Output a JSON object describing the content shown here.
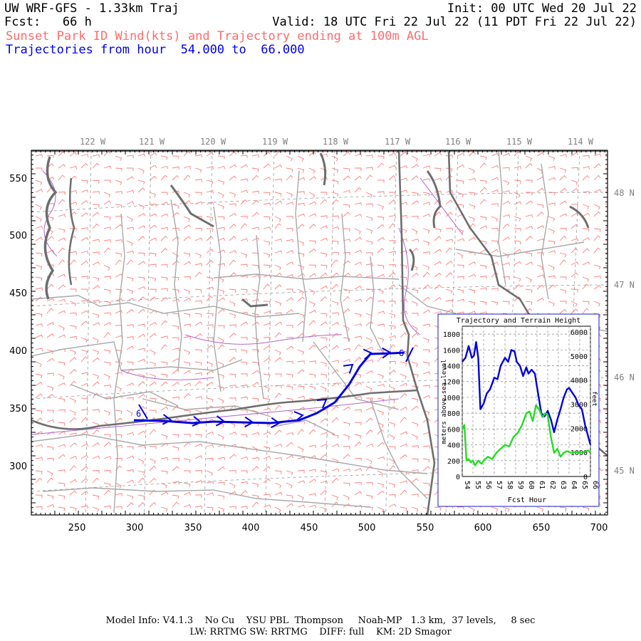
{
  "header": {
    "title": "UW WRF-GFS - 1.33km Traj",
    "init": "Init: 00 UTC Wed 20 Jul 22",
    "fcst": "Fcst:   66 h",
    "valid": "Valid: 18 UTC Fri 22 Jul 22 (11 PDT Fri 22 Jul 22)",
    "subtitle_red": "Sunset Park ID Wind(kts) and Trajectory ending at 100m AGL",
    "subtitle_blue": "Trajectories from hour  54.000 to  66.000"
  },
  "map": {
    "lon_labels": [
      "122 W",
      "121 W",
      "120 W",
      "119 W",
      "118 W",
      "117 W",
      "116 W",
      "115 W",
      "114 W"
    ],
    "lat_labels": [
      "48 N",
      "47 N",
      "46 N",
      "45 N"
    ],
    "x_ticks": [
      "250",
      "300",
      "350",
      "400",
      "450",
      "500",
      "550",
      "600",
      "650",
      "700"
    ],
    "y_ticks": [
      "550",
      "500",
      "450",
      "400",
      "350",
      "300"
    ],
    "trajectory_start_label": "6",
    "trajectory_end_label": "6",
    "colors": {
      "barbs": "#ff7a7a",
      "counties": "#a8a8a8",
      "states": "#6e6e6e",
      "rivers": "#b266cc",
      "trajectory": "#0000dd",
      "graticule": "#9a9a9a"
    }
  },
  "inset": {
    "title": "Trajectory and Terrain Height",
    "xlabel": "Fcst Hour",
    "ylabel_left": "meters above sea level",
    "ylabel_right": "feet",
    "x_ticks": [
      "54",
      "55",
      "56",
      "57",
      "58",
      "59",
      "60",
      "61",
      "62",
      "63",
      "64",
      "65",
      "66"
    ],
    "y_left_ticks": [
      "1800",
      "1600",
      "1400",
      "1200",
      "1000",
      "800",
      "600",
      "400",
      "200",
      "0"
    ],
    "y_right_ticks": [
      "6000",
      "5000",
      "4000",
      "3000",
      "2000",
      "1000",
      "0"
    ]
  },
  "chart_data": {
    "type": "line",
    "title": "Trajectory and Terrain Height",
    "xlabel": "Fcst Hour",
    "ylabel": "meters above sea level",
    "xlim": [
      54,
      66
    ],
    "ylim": [
      0,
      1900
    ],
    "series": [
      {
        "color": "#0000dd",
        "x": [
          54.0,
          54.3,
          54.6,
          54.9,
          55.1,
          55.3,
          55.5,
          55.7,
          56.0,
          56.3,
          56.6,
          57.0,
          57.3,
          57.6,
          58.0,
          58.3,
          58.6,
          58.9,
          59.1,
          59.4,
          59.7,
          60.0,
          60.2,
          60.5,
          60.8,
          61.1,
          61.4,
          61.7,
          62.0,
          62.3,
          62.6,
          62.9,
          63.2,
          63.5,
          63.8,
          64.0,
          64.3,
          64.6,
          64.9,
          65.2,
          65.5,
          65.8,
          66.0
        ],
        "y": [
          1450,
          1500,
          1650,
          1500,
          1530,
          1700,
          1500,
          850,
          920,
          1050,
          1100,
          1250,
          1230,
          1400,
          1500,
          1450,
          1600,
          1580,
          1450,
          1400,
          1270,
          1380,
          1300,
          1350,
          1300,
          1050,
          800,
          760,
          830,
          720,
          560,
          720,
          850,
          1000,
          1100,
          1120,
          1060,
          1000,
          900,
          850,
          650,
          500,
          400
        ]
      },
      {
        "color": "#22dd22",
        "x": [
          54.0,
          54.2,
          54.4,
          54.6,
          54.8,
          55.0,
          55.2,
          55.5,
          55.8,
          56.0,
          56.4,
          56.8,
          57.2,
          57.6,
          58.0,
          58.4,
          58.8,
          59.2,
          59.6,
          60.0,
          60.3,
          60.6,
          60.9,
          61.2,
          61.5,
          61.8,
          62.0,
          62.3,
          62.6,
          62.9,
          63.2,
          63.5,
          63.8,
          64.2,
          64.6,
          65.0,
          65.4,
          65.8,
          66.0
        ],
        "y": [
          600,
          650,
          200,
          220,
          180,
          200,
          140,
          200,
          160,
          200,
          250,
          220,
          300,
          350,
          400,
          380,
          500,
          550,
          650,
          800,
          820,
          700,
          900,
          850,
          750,
          800,
          780,
          500,
          300,
          350,
          250,
          300,
          320,
          300,
          310,
          300,
          310,
          330,
          300
        ]
      }
    ]
  },
  "footer": {
    "line1": "Model Info: V4.1.3    No Cu    YSU PBL  Thompson     Noah-MP   1.3 km,  37 levels,     8 sec",
    "line2": "LW: RRTMG SW: RRTMG    DIFF: full    KM: 2D Smagor"
  }
}
